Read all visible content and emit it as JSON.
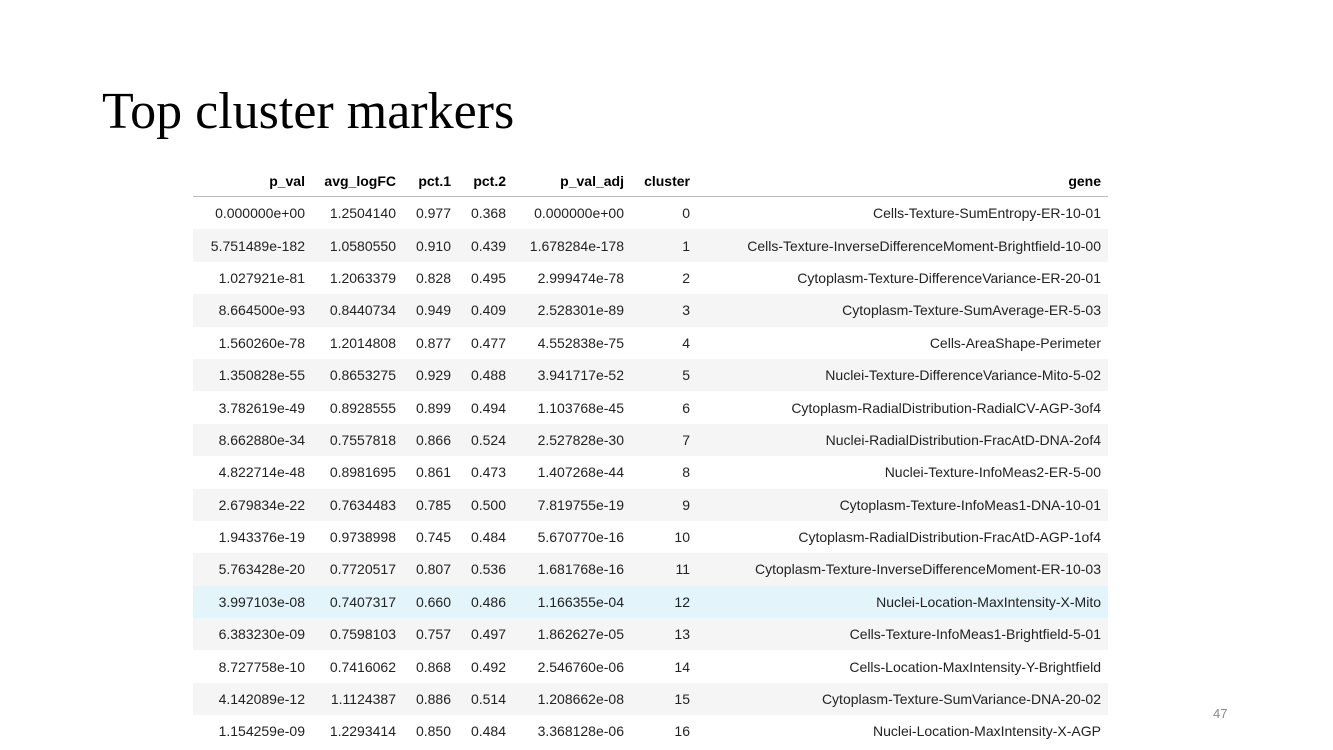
{
  "title": "Top cluster markers",
  "page_number": "47",
  "table": {
    "columns": [
      "p_val",
      "avg_logFC",
      "pct.1",
      "pct.2",
      "p_val_adj",
      "cluster",
      "gene"
    ],
    "highlight_row": 12,
    "rows": [
      [
        "0.000000e+00",
        "1.2504140",
        "0.977",
        "0.368",
        "0.000000e+00",
        "0",
        "Cells-Texture-SumEntropy-ER-10-01"
      ],
      [
        "5.751489e-182",
        "1.0580550",
        "0.910",
        "0.439",
        "1.678284e-178",
        "1",
        "Cells-Texture-InverseDifferenceMoment-Brightfield-10-00"
      ],
      [
        "1.027921e-81",
        "1.2063379",
        "0.828",
        "0.495",
        "2.999474e-78",
        "2",
        "Cytoplasm-Texture-DifferenceVariance-ER-20-01"
      ],
      [
        "8.664500e-93",
        "0.8440734",
        "0.949",
        "0.409",
        "2.528301e-89",
        "3",
        "Cytoplasm-Texture-SumAverage-ER-5-03"
      ],
      [
        "1.560260e-78",
        "1.2014808",
        "0.877",
        "0.477",
        "4.552838e-75",
        "4",
        "Cells-AreaShape-Perimeter"
      ],
      [
        "1.350828e-55",
        "0.8653275",
        "0.929",
        "0.488",
        "3.941717e-52",
        "5",
        "Nuclei-Texture-DifferenceVariance-Mito-5-02"
      ],
      [
        "3.782619e-49",
        "0.8928555",
        "0.899",
        "0.494",
        "1.103768e-45",
        "6",
        "Cytoplasm-RadialDistribution-RadialCV-AGP-3of4"
      ],
      [
        "8.662880e-34",
        "0.7557818",
        "0.866",
        "0.524",
        "2.527828e-30",
        "7",
        "Nuclei-RadialDistribution-FracAtD-DNA-2of4"
      ],
      [
        "4.822714e-48",
        "0.8981695",
        "0.861",
        "0.473",
        "1.407268e-44",
        "8",
        "Nuclei-Texture-InfoMeas2-ER-5-00"
      ],
      [
        "2.679834e-22",
        "0.7634483",
        "0.785",
        "0.500",
        "7.819755e-19",
        "9",
        "Cytoplasm-Texture-InfoMeas1-DNA-10-01"
      ],
      [
        "1.943376e-19",
        "0.9738998",
        "0.745",
        "0.484",
        "5.670770e-16",
        "10",
        "Cytoplasm-RadialDistribution-FracAtD-AGP-1of4"
      ],
      [
        "5.763428e-20",
        "0.7720517",
        "0.807",
        "0.536",
        "1.681768e-16",
        "11",
        "Cytoplasm-Texture-InverseDifferenceMoment-ER-10-03"
      ],
      [
        "3.997103e-08",
        "0.7407317",
        "0.660",
        "0.486",
        "1.166355e-04",
        "12",
        "Nuclei-Location-MaxIntensity-X-Mito"
      ],
      [
        "6.383230e-09",
        "0.7598103",
        "0.757",
        "0.497",
        "1.862627e-05",
        "13",
        "Cells-Texture-InfoMeas1-Brightfield-5-01"
      ],
      [
        "8.727758e-10",
        "0.7416062",
        "0.868",
        "0.492",
        "2.546760e-06",
        "14",
        "Cells-Location-MaxIntensity-Y-Brightfield"
      ],
      [
        "4.142089e-12",
        "1.1124387",
        "0.886",
        "0.514",
        "1.208662e-08",
        "15",
        "Cytoplasm-Texture-SumVariance-DNA-20-02"
      ],
      [
        "1.154259e-09",
        "1.2293414",
        "0.850",
        "0.484",
        "3.368128e-06",
        "16",
        "Nuclei-Location-MaxIntensity-X-AGP"
      ]
    ]
  }
}
